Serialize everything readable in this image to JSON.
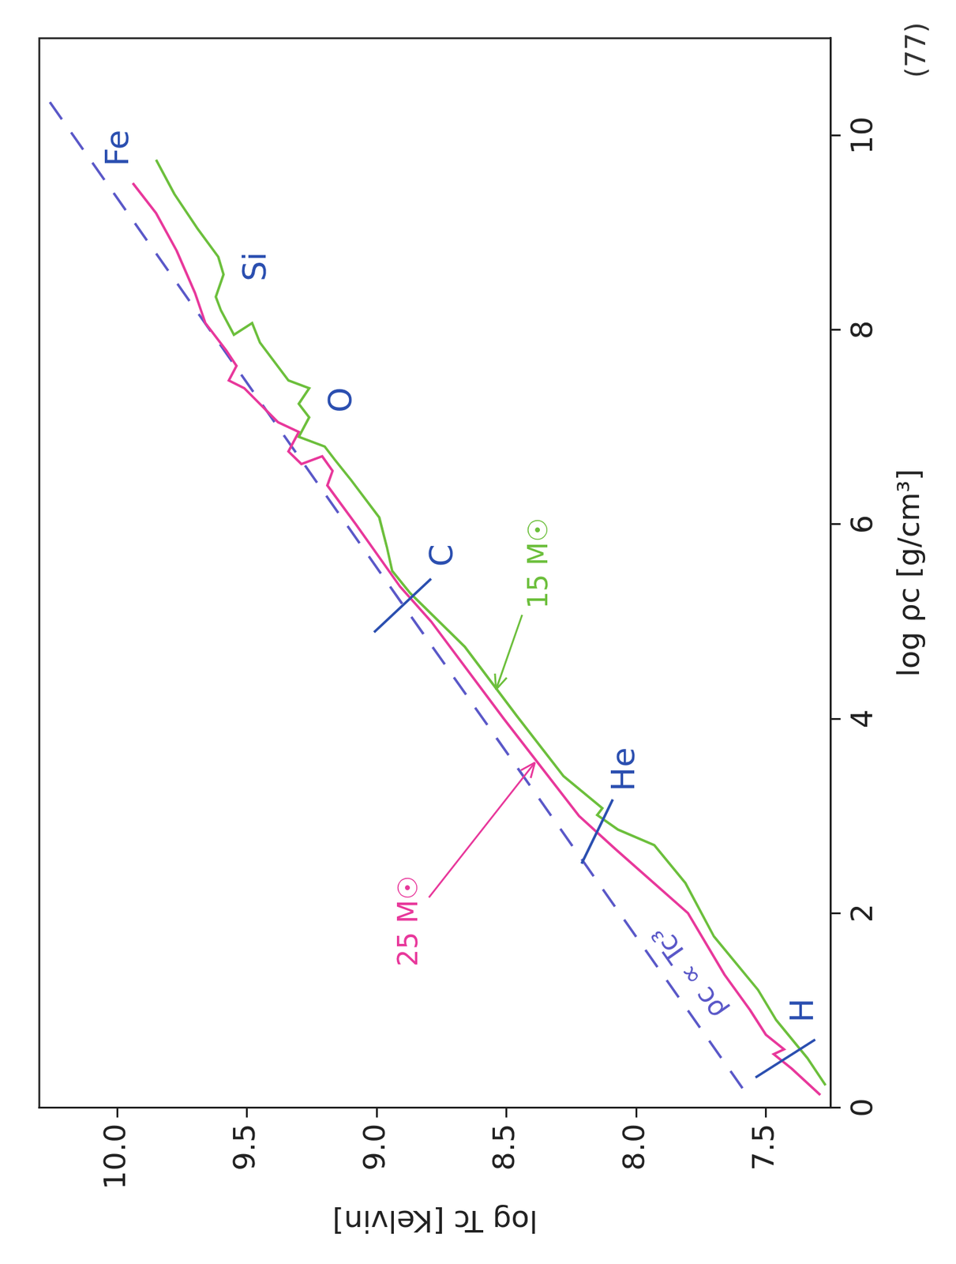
{
  "chart_data": {
    "type": "line",
    "page_label": "(77)",
    "x_label": "log ρc [g/cm³]",
    "y_label": "log Tc [Kelvin]",
    "xlim": [
      0,
      11
    ],
    "xticks": [
      0,
      2,
      4,
      6,
      8,
      10
    ],
    "ylim": [
      7.25,
      10.3
    ],
    "yticks": [
      7.5,
      {
        "value": 8,
        "label": "8.0"
      },
      8.5,
      {
        "value": 9,
        "label": "9.0"
      },
      9.5,
      {
        "value": 10,
        "label": "10.0"
      }
    ],
    "grid": false,
    "series": [
      {
        "name": "25 M☉",
        "color": "#e8389b",
        "line_style": "solid",
        "marker": "none",
        "label_position": [
          1.92,
          8.87
        ],
        "arrow_to": [
          3.55,
          8.39
        ],
        "x": [
          0.13,
          0.4,
          0.55,
          0.6,
          0.75,
          1.0,
          1.37,
          2.0,
          2.66,
          3.0,
          4.0,
          5.0,
          5.36,
          6.0,
          6.4,
          6.55,
          6.7,
          6.62,
          6.75,
          6.95,
          7.05,
          7.4,
          7.48,
          7.63,
          7.79,
          8.07,
          8.38,
          8.81,
          9.2,
          9.51
        ],
        "values": [
          7.29,
          7.4,
          7.47,
          7.43,
          7.5,
          7.56,
          7.66,
          7.8,
          8.08,
          8.22,
          8.51,
          8.79,
          8.91,
          9.08,
          9.19,
          9.17,
          9.21,
          9.29,
          9.34,
          9.3,
          9.38,
          9.51,
          9.57,
          9.54,
          9.58,
          9.66,
          9.7,
          9.77,
          9.85,
          9.94
        ]
      },
      {
        "name": "15 M☉",
        "color": "#6cbf3c",
        "line_style": "solid",
        "marker": "none",
        "label_position": [
          5.6,
          8.37
        ],
        "arrow_to": [
          4.3,
          8.54
        ],
        "x": [
          0.23,
          0.51,
          0.9,
          1.21,
          1.76,
          2.31,
          2.7,
          2.86,
          3.01,
          3.08,
          3.41,
          4.03,
          4.74,
          5.29,
          5.52,
          5.76,
          6.07,
          6.46,
          6.66,
          6.8,
          6.9,
          7.1,
          7.24,
          7.4,
          7.48,
          7.87,
          8.07,
          7.95,
          8.2,
          8.34,
          8.57,
          8.75,
          9.04,
          9.4,
          9.75
        ],
        "values": [
          7.27,
          7.34,
          7.46,
          7.53,
          7.7,
          7.81,
          7.93,
          8.07,
          8.15,
          8.13,
          8.28,
          8.46,
          8.66,
          8.87,
          8.94,
          8.96,
          8.99,
          9.1,
          9.16,
          9.2,
          9.3,
          9.26,
          9.3,
          9.26,
          9.34,
          9.45,
          9.48,
          9.55,
          9.6,
          9.62,
          9.59,
          9.61,
          9.69,
          9.78,
          9.85
        ]
      },
      {
        "name": "ρc ∝ Tc³",
        "color": "#5a58c8",
        "line_style": "dashed",
        "marker": "none",
        "label_position": [
          1.4,
          7.79
        ],
        "x": [
          0.2,
          10.42
        ],
        "values": [
          7.59,
          10.28
        ]
      }
    ],
    "annotations": [
      {
        "text": "H",
        "x": 1.0,
        "y": 7.35,
        "color": "#2b4fb0",
        "mark": [
          [
            0.31,
            7.54
          ],
          [
            0.7,
            7.31
          ]
        ]
      },
      {
        "text": "He",
        "x": 3.48,
        "y": 8.04,
        "color": "#2b4fb0",
        "mark": [
          [
            2.51,
            8.21
          ],
          [
            3.17,
            8.09
          ]
        ]
      },
      {
        "text": "C",
        "x": 5.68,
        "y": 8.74,
        "color": "#2b4fb0",
        "mark": [
          [
            4.89,
            9.01
          ],
          [
            5.44,
            8.79
          ]
        ]
      },
      {
        "text": "O",
        "x": 7.28,
        "y": 9.13,
        "color": "#2b4fb0"
      },
      {
        "text": "Si",
        "x": 8.65,
        "y": 9.46,
        "color": "#2b4fb0"
      },
      {
        "text": "Fe",
        "x": 9.87,
        "y": 9.99,
        "color": "#2b4fb0"
      }
    ]
  }
}
